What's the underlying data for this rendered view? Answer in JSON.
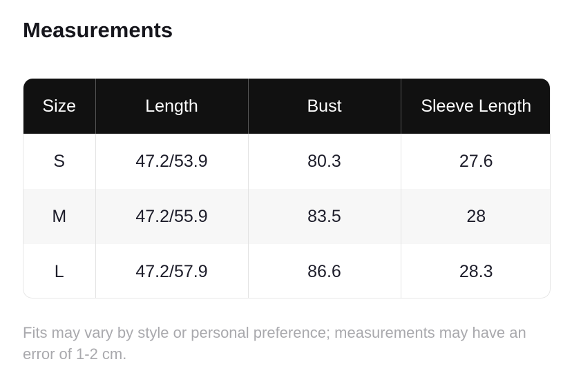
{
  "title": "Measurements",
  "table": {
    "headers": [
      "Size",
      "Length",
      "Bust",
      "Sleeve Length"
    ],
    "rows": [
      [
        "S",
        "47.2/53.9",
        "80.3",
        "27.6"
      ],
      [
        "M",
        "47.2/55.9",
        "83.5",
        "28"
      ],
      [
        "L",
        "47.2/57.9",
        "86.6",
        "28.3"
      ]
    ]
  },
  "note": "Fits may vary by style or personal preference; measurements may have an error of 1-2 cm.",
  "colors": {
    "header_bg": "#111111",
    "header_text": "#ffffff",
    "alt_row_bg": "#f7f7f7",
    "note_text": "#a9a9ad"
  }
}
